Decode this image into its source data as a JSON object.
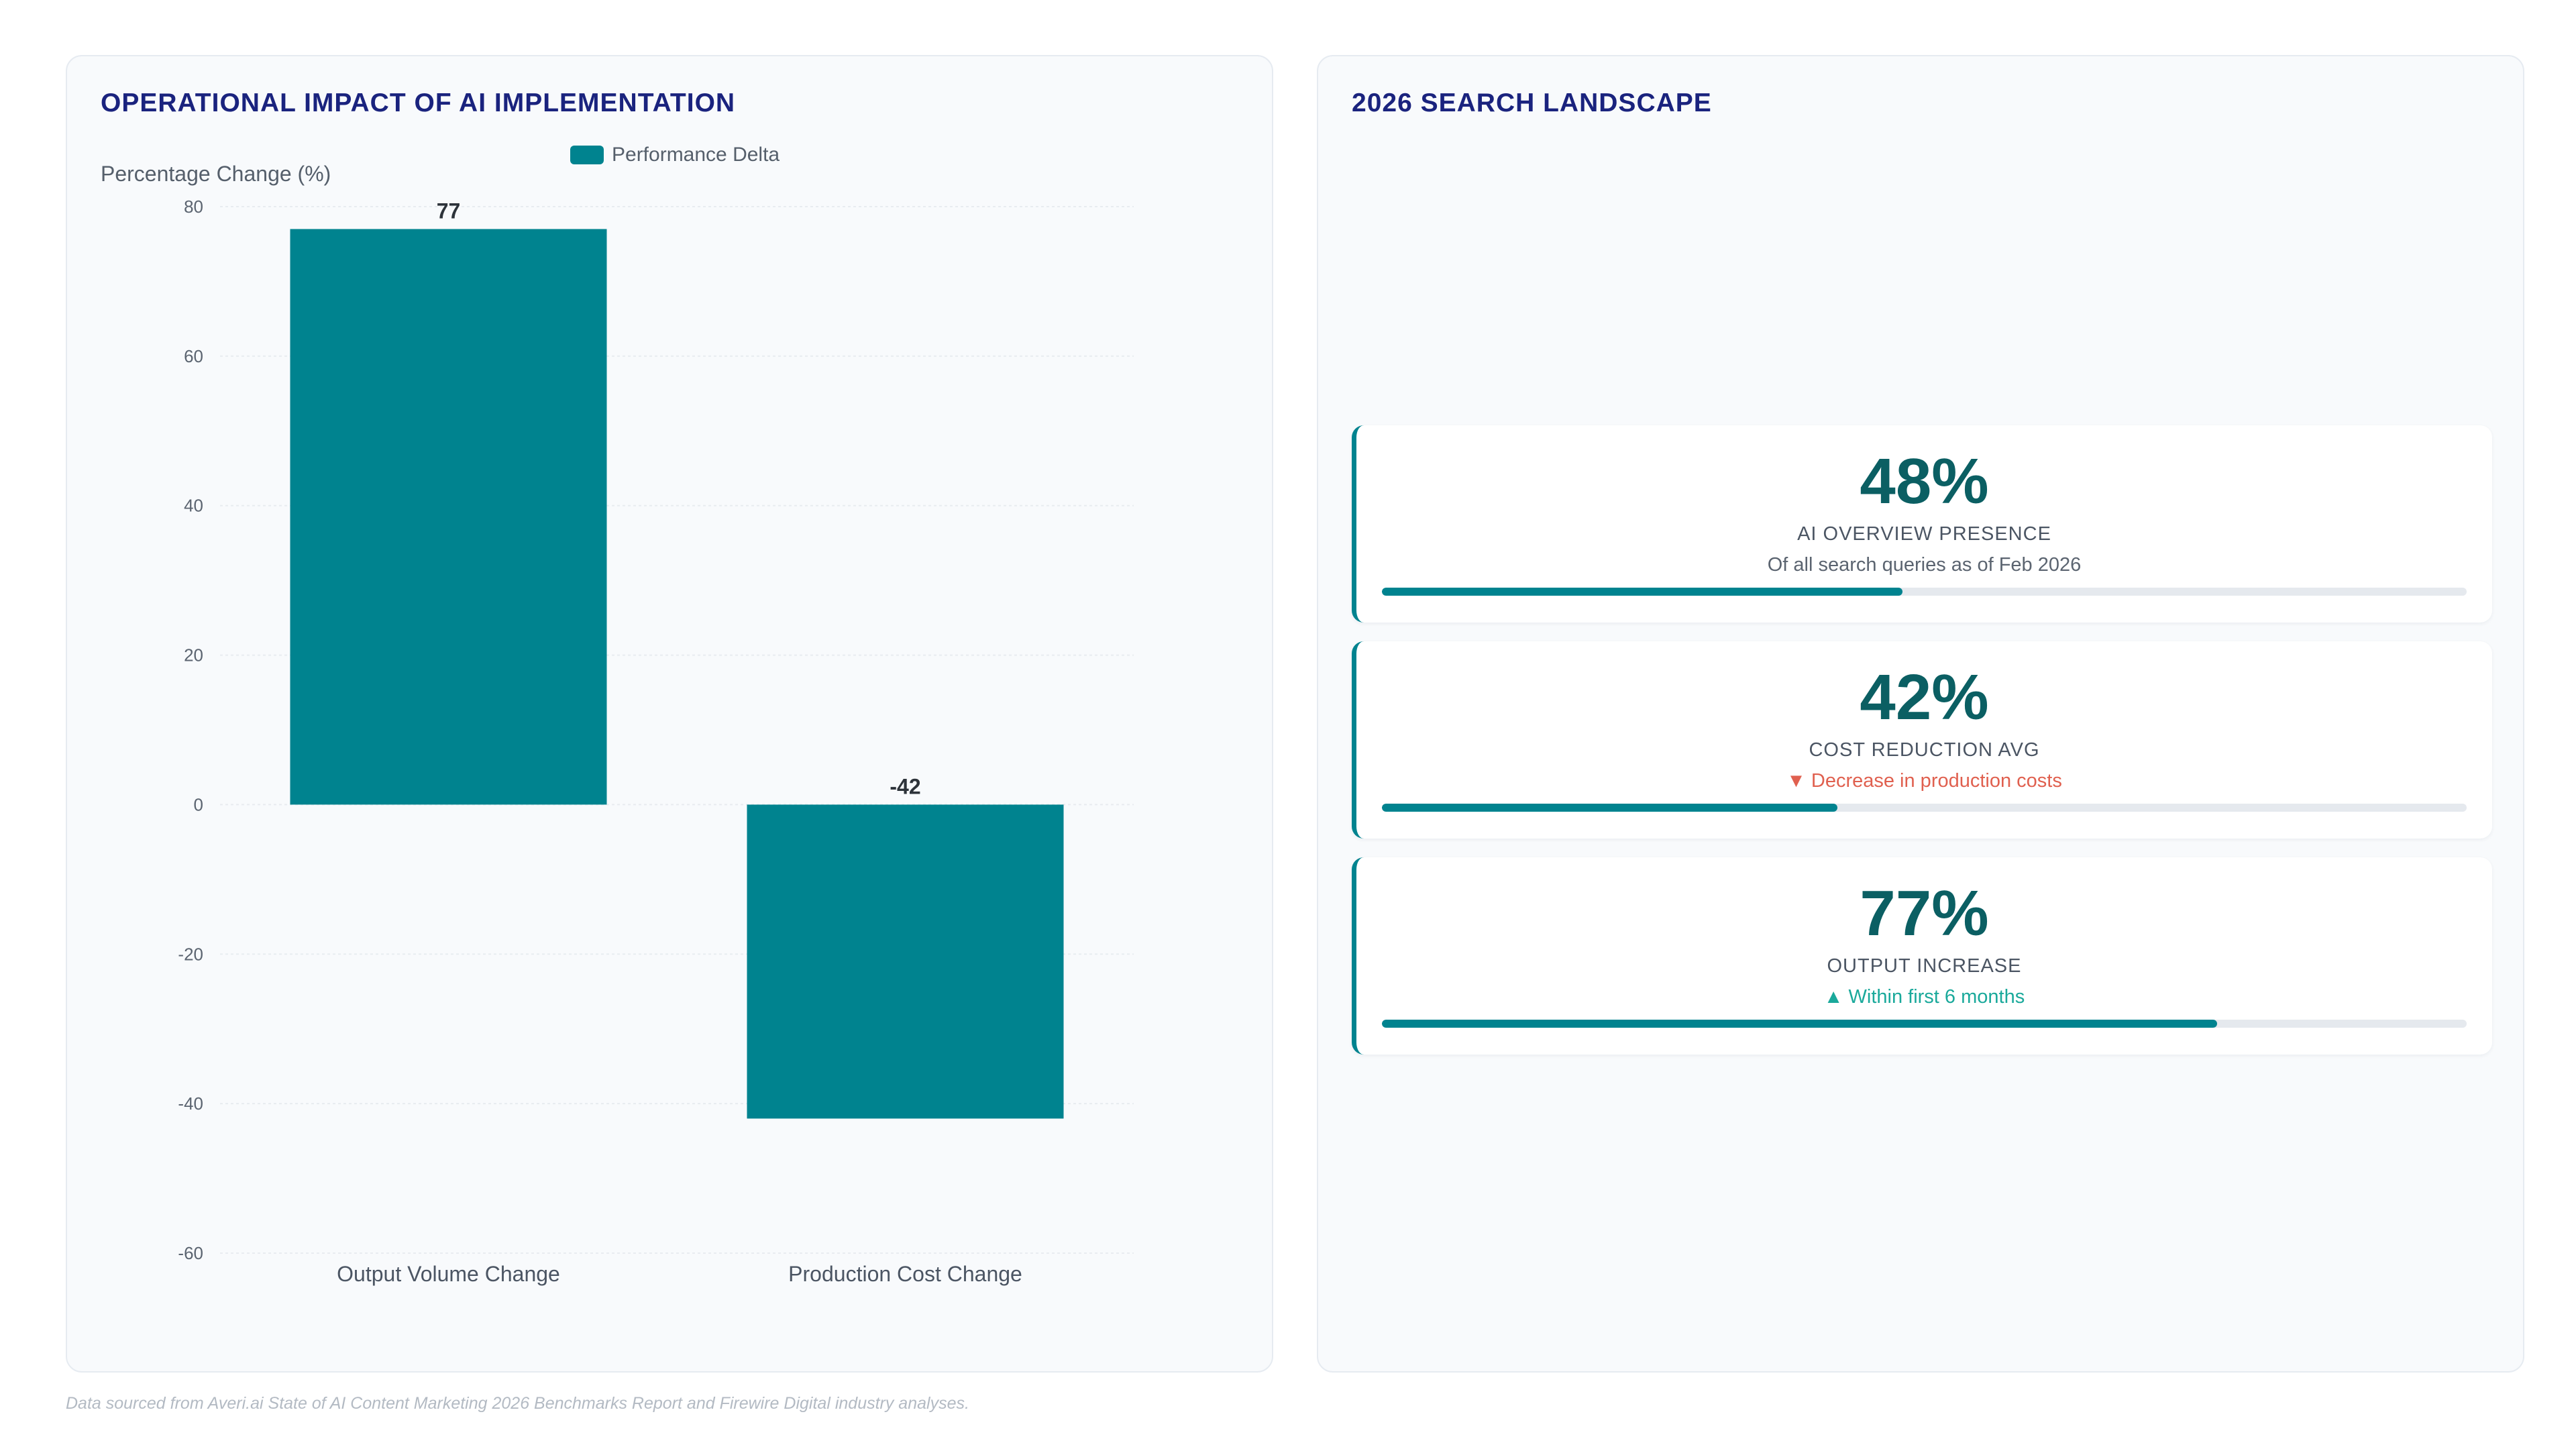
{
  "left_panel": {
    "title": "OPERATIONAL IMPACT OF AI IMPLEMENTATION"
  },
  "chart_data": {
    "type": "bar",
    "title": "OPERATIONAL IMPACT OF AI IMPLEMENTATION",
    "ylabel": "Percentage Change (%)",
    "xlabel": "",
    "categories": [
      "Output Volume Change",
      "Production Cost Change"
    ],
    "series": [
      {
        "name": "Performance Delta",
        "values": [
          77,
          -42
        ],
        "color": "#00838f"
      }
    ],
    "data_labels": [
      "77",
      "-42"
    ],
    "ylim": [
      -60,
      80
    ],
    "yticks": [
      80,
      60,
      40,
      20,
      0,
      -20,
      -40,
      -60
    ],
    "grid": true,
    "legend": "top-center"
  },
  "right_panel": {
    "title": "2026 SEARCH LANDSCAPE",
    "stats": [
      {
        "value": "48%",
        "label": "AI OVERVIEW PRESENCE",
        "sub": "Of all search queries as of Feb 2026",
        "sub_style": "neutral",
        "progress": 48
      },
      {
        "value": "42%",
        "label": "COST REDUCTION AVG",
        "sub": "▼ Decrease in production costs",
        "sub_style": "down",
        "progress": 42
      },
      {
        "value": "77%",
        "label": "OUTPUT INCREASE",
        "sub": "▲ Within first 6 months",
        "sub_style": "up",
        "progress": 77
      }
    ]
  },
  "footnote": "Data sourced from Averi.ai State of AI Content Marketing 2026 Benchmarks Report and Firewire Digital industry analyses."
}
